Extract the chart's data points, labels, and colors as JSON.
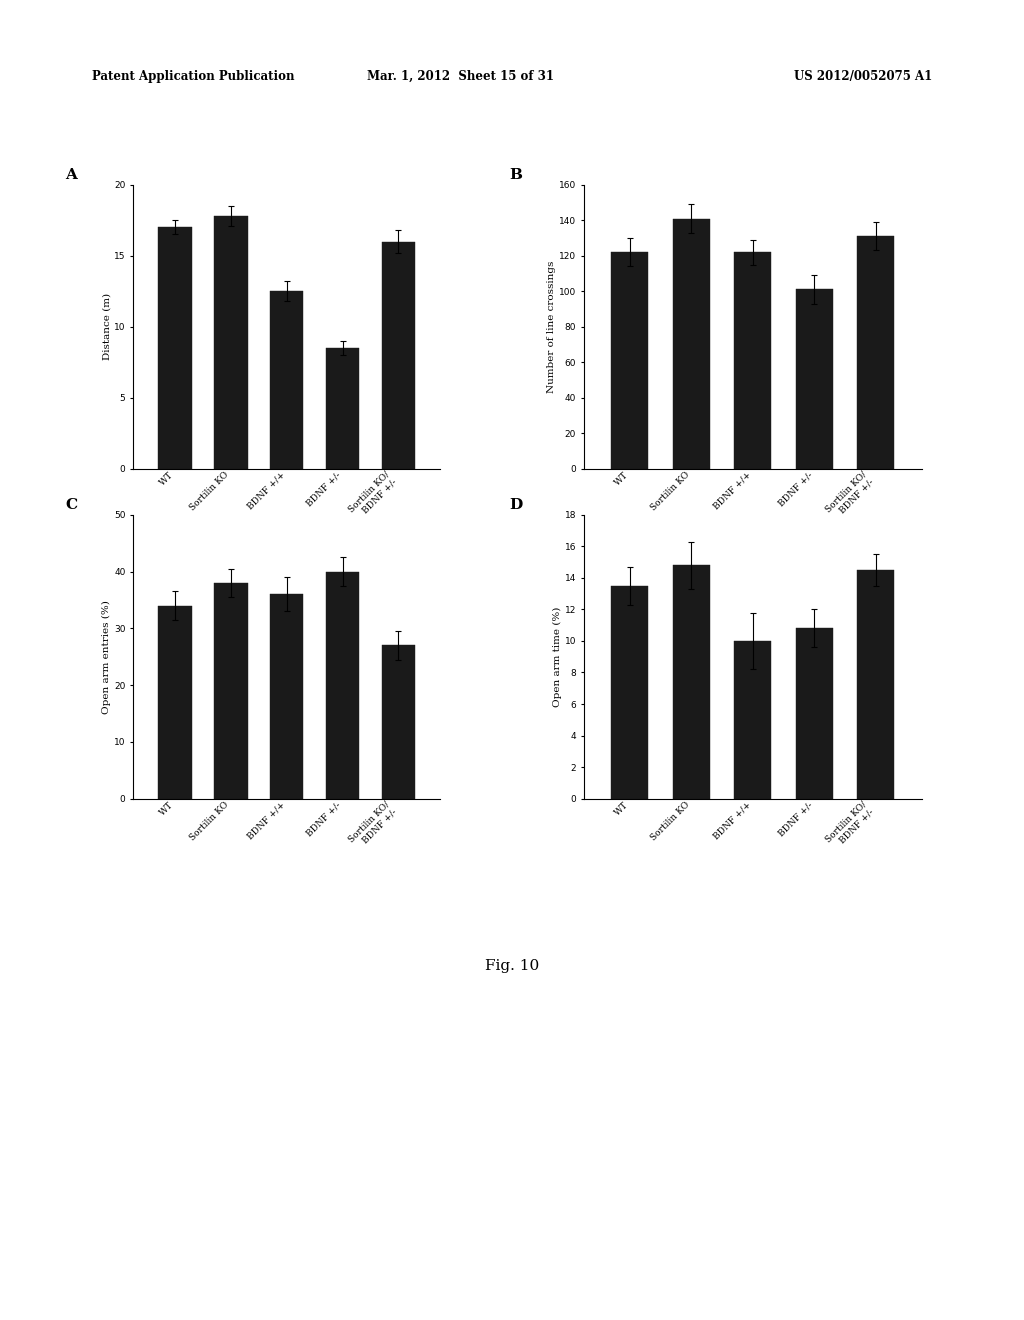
{
  "categories": [
    "WT",
    "Sortilin KO",
    "BDNF +/+",
    "BDNF +/-",
    "Sortilin KO/\nBDNF +/-"
  ],
  "panel_A": {
    "title": "A",
    "ylabel": "Distance (m)",
    "ylim": [
      0,
      20
    ],
    "yticks": [
      0,
      5,
      10,
      15,
      20
    ],
    "values": [
      17.0,
      17.8,
      12.5,
      8.5,
      16.0
    ],
    "errors": [
      0.5,
      0.7,
      0.7,
      0.5,
      0.8
    ]
  },
  "panel_B": {
    "title": "B",
    "ylabel": "Number of line crossings",
    "ylim": [
      0,
      160
    ],
    "yticks": [
      0,
      20,
      40,
      60,
      80,
      100,
      120,
      140,
      160
    ],
    "values": [
      122,
      141,
      122,
      101,
      131
    ],
    "errors": [
      8,
      8,
      7,
      8,
      8
    ]
  },
  "panel_C": {
    "title": "C",
    "ylabel": "Open arm entries (%)",
    "ylim": [
      0,
      50
    ],
    "yticks": [
      0,
      10,
      20,
      30,
      40,
      50
    ],
    "values": [
      34,
      38,
      36,
      40,
      27
    ],
    "errors": [
      2.5,
      2.5,
      3,
      2.5,
      2.5
    ]
  },
  "panel_D": {
    "title": "D",
    "ylabel": "Open arm time (%)",
    "ylim": [
      0,
      18
    ],
    "yticks": [
      0,
      2,
      4,
      6,
      8,
      10,
      12,
      14,
      16,
      18
    ],
    "values": [
      13.5,
      14.8,
      10.0,
      10.8,
      14.5
    ],
    "errors": [
      1.2,
      1.5,
      1.8,
      1.2,
      1.0
    ]
  },
  "bar_color": "#1a1a1a",
  "bar_width": 0.6,
  "tick_label_fontsize": 6.5,
  "axis_label_fontsize": 7.5,
  "panel_label_fontsize": 11,
  "header_left": "Patent Application Publication",
  "header_mid": "Mar. 1, 2012  Sheet 15 of 31",
  "header_right": "US 2012/0052075 A1",
  "figure_label": "Fig. 10"
}
